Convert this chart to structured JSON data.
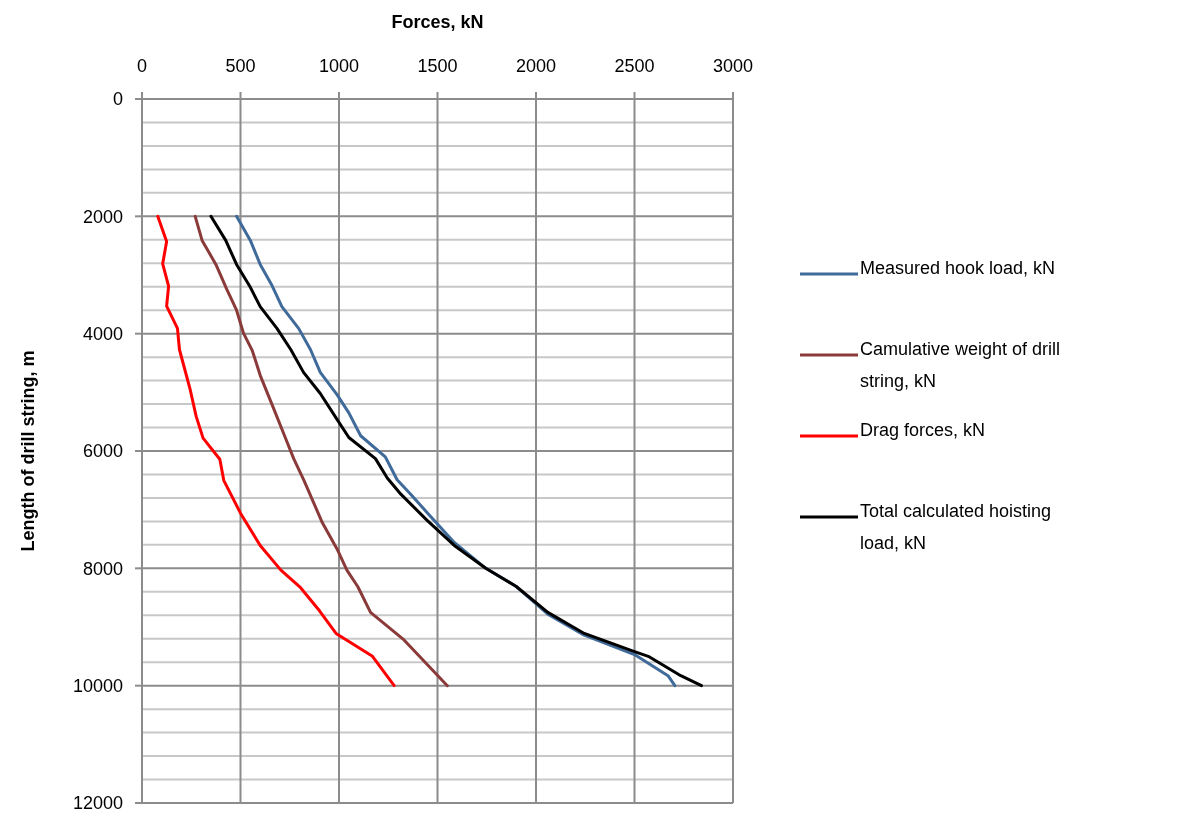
{
  "chart_data": {
    "type": "line",
    "xlabel": "Forces, kN",
    "ylabel": "Length of drill string, m",
    "xlim": [
      0,
      3000
    ],
    "xticks": [
      0,
      500,
      1000,
      1500,
      2000,
      2500,
      3000
    ],
    "ylim": [
      12000,
      0
    ],
    "yticks": [
      0,
      {
        "value": 400,
        "label": null
      },
      {
        "value": 800,
        "label": null
      },
      {
        "value": 1200,
        "label": null
      },
      {
        "value": 1600,
        "label": null
      },
      2000,
      {
        "value": 2400,
        "label": null
      },
      {
        "value": 2800,
        "label": null
      },
      {
        "value": 3200,
        "label": null
      },
      {
        "value": 3600,
        "label": null
      },
      4000,
      {
        "value": 4400,
        "label": null
      },
      {
        "value": 4800,
        "label": null
      },
      {
        "value": 5200,
        "label": null
      },
      {
        "value": 5600,
        "label": null
      },
      6000,
      {
        "value": 6400,
        "label": null
      },
      {
        "value": 6800,
        "label": null
      },
      {
        "value": 7200,
        "label": null
      },
      {
        "value": 7600,
        "label": null
      },
      8000,
      {
        "value": 8400,
        "label": null
      },
      {
        "value": 8800,
        "label": null
      },
      {
        "value": 9200,
        "label": null
      },
      {
        "value": 9600,
        "label": null
      },
      10000,
      {
        "value": 10400,
        "label": null
      },
      {
        "value": 10800,
        "label": null
      },
      {
        "value": 11200,
        "label": null
      },
      {
        "value": 11600,
        "label": null
      },
      12000
    ],
    "grid": true,
    "legend": "right",
    "marker": "none",
    "line_style": "solid",
    "series": [
      {
        "name": "Measured hook load, kN",
        "color": "#3f6a9a",
        "x": [
          480,
          550,
          600,
          660,
          710,
          795,
          855,
          905,
          990,
          1050,
          1110,
          1235,
          1295,
          1365,
          1450,
          1585,
          1745,
          1900,
          2060,
          2245,
          2500,
          2670,
          2705
        ],
        "values": [
          2000,
          2410,
          2820,
          3180,
          3540,
          3910,
          4270,
          4660,
          5040,
          5350,
          5740,
          6100,
          6490,
          6740,
          7060,
          7560,
          8000,
          8310,
          8780,
          9140,
          9470,
          9830,
          10000
        ]
      },
      {
        "name": "Camulative weight of drill string, kN",
        "color": "#8b3a3a",
        "x": [
          270,
          305,
          375,
          430,
          480,
          515,
          560,
          600,
          670,
          720,
          770,
          822,
          915,
          990,
          1040,
          1095,
          1160,
          1330,
          1550
        ],
        "values": [
          2000,
          2410,
          2820,
          3240,
          3600,
          3990,
          4290,
          4710,
          5290,
          5710,
          6130,
          6500,
          7220,
          7670,
          8030,
          8310,
          8750,
          9220,
          10000
        ]
      },
      {
        "name": "Drag forces, kN",
        "color": "#ff0000",
        "x": [
          80,
          125,
          105,
          135,
          125,
          180,
          190,
          245,
          275,
          310,
          395,
          415,
          500,
          600,
          705,
          805,
          900,
          985,
          1170,
          1280
        ],
        "values": [
          2000,
          2430,
          2810,
          3190,
          3530,
          3910,
          4270,
          4960,
          5410,
          5780,
          6140,
          6500,
          7060,
          7610,
          8030,
          8330,
          8720,
          9110,
          9500,
          10000
        ]
      },
      {
        "name": "Total calculated hoisting load, kN",
        "color": "#000000",
        "x": [
          350,
          425,
          480,
          550,
          600,
          685,
          755,
          820,
          905,
          990,
          1050,
          1185,
          1245,
          1315,
          1450,
          1585,
          1745,
          1900,
          2060,
          2245,
          2500,
          2570,
          2735,
          2840
        ],
        "values": [
          2000,
          2410,
          2820,
          3210,
          3540,
          3910,
          4270,
          4660,
          5020,
          5460,
          5770,
          6130,
          6460,
          6740,
          7190,
          7610,
          8000,
          8310,
          8750,
          9110,
          9420,
          9500,
          9830,
          10000
        ]
      }
    ]
  }
}
